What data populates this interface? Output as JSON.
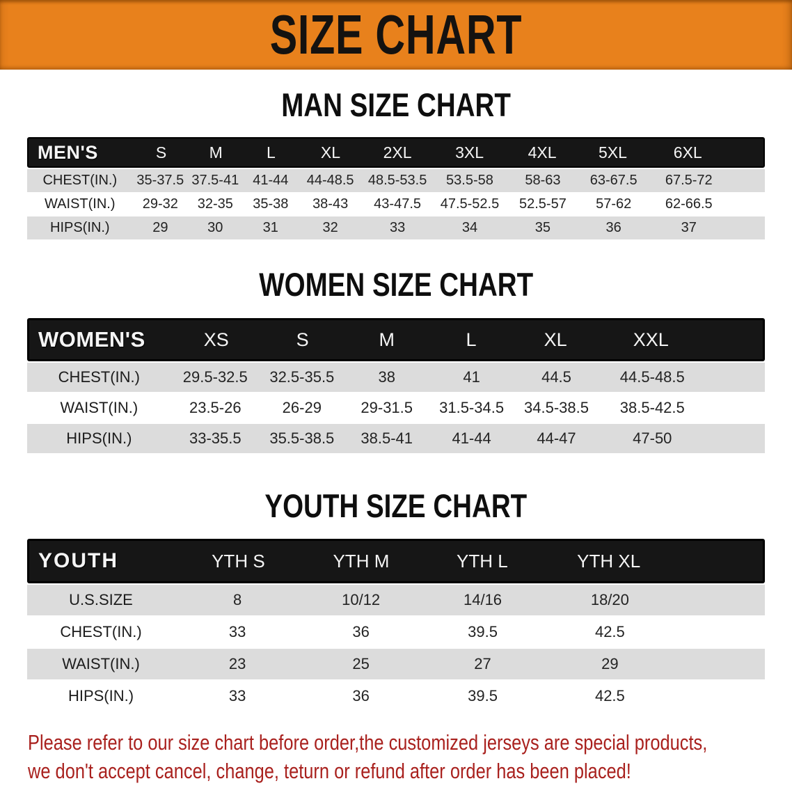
{
  "banner": {
    "title": "SIZE CHART"
  },
  "colors": {
    "banner_orange": "#e8811c",
    "bar_black": "#161616",
    "stripe_gray": "#dcdcdc",
    "note_red": "#a9211e"
  },
  "sections": [
    {
      "heading": "MAN SIZE CHART",
      "label": "MEN'S",
      "sizes": [
        "S",
        "M",
        "L",
        "XL",
        "2XL",
        "3XL",
        "4XL",
        "5XL",
        "6XL"
      ],
      "rows": [
        {
          "label": "CHEST(IN.)",
          "values": [
            "35-37.5",
            "37.5-41",
            "41-44",
            "44-48.5",
            "48.5-53.5",
            "53.5-58",
            "58-63",
            "63-67.5",
            "67.5-72"
          ]
        },
        {
          "label": "WAIST(IN.)",
          "values": [
            "29-32",
            "32-35",
            "35-38",
            "38-43",
            "43-47.5",
            "47.5-52.5",
            "52.5-57",
            "57-62",
            "62-66.5"
          ]
        },
        {
          "label": "HIPS(IN.)",
          "values": [
            "29",
            "30",
            "31",
            "32",
            "33",
            "34",
            "35",
            "36",
            "37"
          ]
        }
      ]
    },
    {
      "heading": "WOMEN SIZE CHART",
      "label": "WOMEN'S",
      "sizes": [
        "XS",
        "S",
        "M",
        "L",
        "XL",
        "XXL"
      ],
      "rows": [
        {
          "label": "CHEST(IN.)",
          "values": [
            "29.5-32.5",
            "32.5-35.5",
            "38",
            "41",
            "44.5",
            "44.5-48.5"
          ]
        },
        {
          "label": "WAIST(IN.)",
          "values": [
            "23.5-26",
            "26-29",
            "29-31.5",
            "31.5-34.5",
            "34.5-38.5",
            "38.5-42.5"
          ]
        },
        {
          "label": "HIPS(IN.)",
          "values": [
            "33-35.5",
            "35.5-38.5",
            "38.5-41",
            "41-44",
            "44-47",
            "47-50"
          ]
        }
      ]
    },
    {
      "heading": "YOUTH SIZE CHART",
      "label": "YOUTH",
      "sizes": [
        "YTH S",
        "YTH M",
        "YTH L",
        "YTH XL"
      ],
      "rows": [
        {
          "label": "U.S.SIZE",
          "values": [
            "8",
            "10/12",
            "14/16",
            "18/20"
          ]
        },
        {
          "label": "CHEST(IN.)",
          "values": [
            "33",
            "36",
            "39.5",
            "42.5"
          ]
        },
        {
          "label": "WAIST(IN.)",
          "values": [
            "23",
            "25",
            "27",
            "29"
          ]
        },
        {
          "label": "HIPS(IN.)",
          "values": [
            "33",
            "36",
            "39.5",
            "42.5"
          ]
        }
      ]
    }
  ],
  "footnote": {
    "line1": "Please refer to our size chart before order,the customized jerseys are special products,",
    "line2": "we don't accept cancel, change, teturn or refund after order has been placed!"
  }
}
